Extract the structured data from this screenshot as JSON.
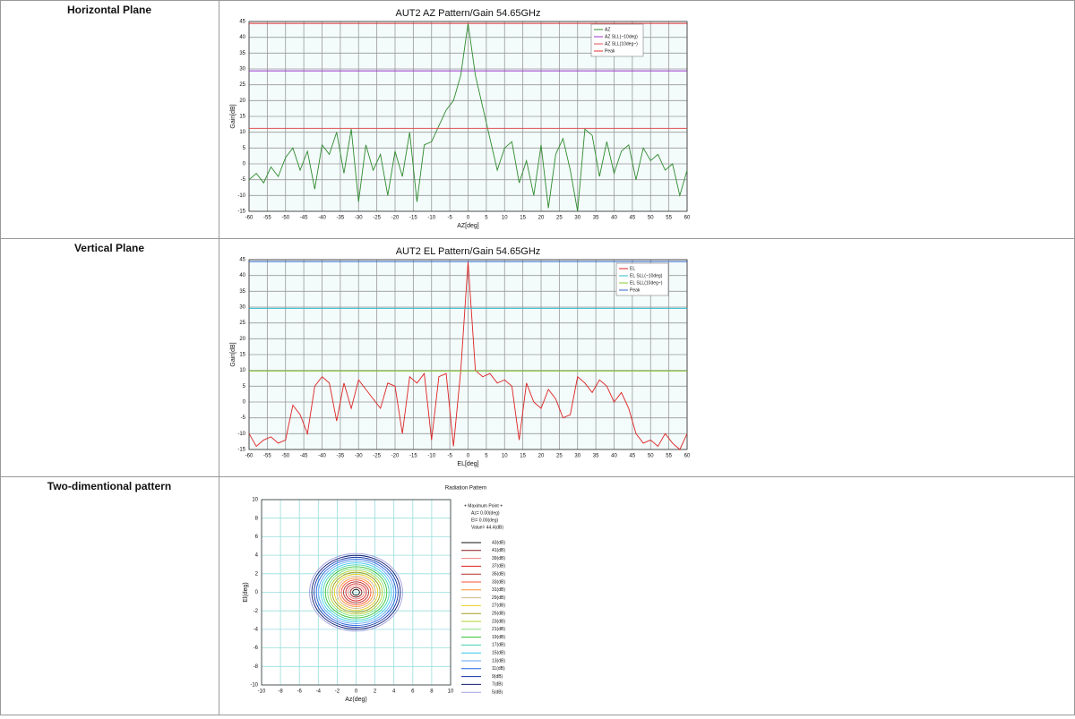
{
  "table": {
    "row_labels": [
      "Horizontal Plane",
      "Vertical Plane",
      "Two-dimentional pattern"
    ]
  },
  "chart_data": [
    {
      "type": "line",
      "title": "AUT2 AZ Pattern/Gain 54.65GHz",
      "xlabel": "AZ[deg]",
      "ylabel": "Gain[dB]",
      "xlim": [
        -60,
        60
      ],
      "ylim": [
        -15,
        45
      ],
      "xticks": [
        -60,
        -55,
        -50,
        -45,
        -40,
        -35,
        -30,
        -25,
        -20,
        -15,
        -10,
        -5,
        0,
        5,
        10,
        15,
        20,
        25,
        30,
        35,
        40,
        45,
        50,
        55,
        60
      ],
      "yticks": [
        -15,
        -10,
        -5,
        0,
        5,
        10,
        15,
        20,
        25,
        30,
        35,
        40,
        45
      ],
      "grid": true,
      "x": [
        -60,
        -58,
        -56,
        -54,
        -52,
        -50,
        -48,
        -46,
        -44,
        -42,
        -40,
        -38,
        -36,
        -34,
        -32,
        -30,
        -28,
        -26,
        -24,
        -22,
        -20,
        -18,
        -16,
        -14,
        -12,
        -10,
        -8,
        -6,
        -4,
        -2,
        0,
        2,
        4,
        6,
        8,
        10,
        12,
        14,
        16,
        18,
        20,
        22,
        24,
        26,
        28,
        30,
        32,
        34,
        36,
        38,
        40,
        42,
        44,
        46,
        48,
        50,
        52,
        54,
        56,
        58,
        60
      ],
      "series": [
        {
          "name": "AZ",
          "color": "#2e8b2e",
          "values": [
            -5,
            -3,
            -6,
            -1,
            -4,
            2,
            5,
            -2,
            4,
            -8,
            6,
            3,
            10,
            -3,
            11,
            -12,
            6,
            -2,
            3,
            -10,
            4,
            -4,
            10,
            -12,
            6,
            7,
            12,
            17,
            20,
            28,
            44.4,
            28,
            18,
            8,
            -2,
            5,
            7,
            -6,
            1,
            -10,
            6,
            -14,
            3,
            8,
            -2,
            -15,
            11,
            9,
            -4,
            7,
            -3,
            4,
            6,
            -5,
            5,
            1,
            3,
            -2,
            0,
            -10,
            -2
          ]
        },
        {
          "name": "AZ SLL(~10deg)",
          "color": "#9933cc",
          "x": [
            -60,
            60
          ],
          "values": [
            29.4,
            29.4
          ]
        },
        {
          "name": "AZ SLL(10deg~)",
          "color": "#e05050",
          "x": [
            -60,
            60
          ],
          "values": [
            11.2,
            11.2
          ]
        },
        {
          "name": "Peak",
          "color": "#e03030",
          "x": [
            -60,
            60
          ],
          "values": [
            44.4,
            44.4
          ]
        }
      ]
    },
    {
      "type": "line",
      "title": "AUT2 EL Pattern/Gain 54.65GHz",
      "xlabel": "EL[deg]",
      "ylabel": "Gain[dB]",
      "xlim": [
        -60,
        60
      ],
      "ylim": [
        -15,
        45
      ],
      "xticks": [
        -60,
        -55,
        -50,
        -45,
        -40,
        -35,
        -30,
        -25,
        -20,
        -15,
        -10,
        -5,
        0,
        5,
        10,
        15,
        20,
        25,
        30,
        35,
        40,
        45,
        50,
        55,
        60
      ],
      "yticks": [
        -15,
        -10,
        -5,
        0,
        5,
        10,
        15,
        20,
        25,
        30,
        35,
        40,
        45
      ],
      "grid": true,
      "x": [
        -60,
        -58,
        -56,
        -54,
        -52,
        -50,
        -48,
        -46,
        -44,
        -42,
        -40,
        -38,
        -36,
        -34,
        -32,
        -30,
        -28,
        -26,
        -24,
        -22,
        -20,
        -18,
        -16,
        -14,
        -12,
        -10,
        -8,
        -6,
        -4,
        -2,
        0,
        2,
        4,
        6,
        8,
        10,
        12,
        14,
        16,
        18,
        20,
        22,
        24,
        26,
        28,
        30,
        32,
        34,
        36,
        38,
        40,
        42,
        44,
        46,
        48,
        50,
        52,
        54,
        56,
        58,
        60
      ],
      "series": [
        {
          "name": "EL",
          "color": "#dd2222",
          "values": [
            -10,
            -14,
            -12,
            -11,
            -13,
            -12,
            -1,
            -4,
            -10,
            5,
            8,
            6,
            -6,
            6,
            -2,
            7,
            4,
            1,
            -2,
            6,
            5,
            -10,
            8,
            6,
            9,
            -12,
            8,
            9,
            -14,
            10,
            44.4,
            10,
            8,
            9,
            6,
            7,
            5,
            -12,
            6,
            0,
            -2,
            4,
            1,
            -5,
            -4,
            8,
            6,
            3,
            7,
            5,
            0,
            3,
            -2,
            -10,
            -13,
            -12,
            -14,
            -10,
            -13,
            -15,
            -10
          ]
        },
        {
          "name": "EL SLL(~10deg)",
          "color": "#33bbcc",
          "x": [
            -60,
            60
          ],
          "values": [
            29.6,
            29.6
          ]
        },
        {
          "name": "EL SLL(10deg~)",
          "color": "#88cc33",
          "x": [
            -60,
            60
          ],
          "values": [
            9.8,
            9.8
          ]
        },
        {
          "name": "Peak",
          "color": "#3366cc",
          "x": [
            -60,
            60
          ],
          "values": [
            44.4,
            44.4
          ]
        }
      ]
    },
    {
      "type": "contour",
      "title": "Radiation Pattern",
      "xlabel": "Az(deg)",
      "ylabel": "El(deg)",
      "xlim": [
        -10,
        10
      ],
      "ylim": [
        -10,
        10
      ],
      "xticks": [
        -10,
        -8,
        -6,
        -4,
        -2,
        0,
        2,
        4,
        6,
        8,
        10
      ],
      "yticks": [
        -10,
        -8,
        -6,
        -4,
        -2,
        0,
        2,
        4,
        6,
        8,
        10
      ],
      "annotations": [
        "+ Maximum Point +",
        "Az= 0.00(deg)",
        "El= 0.00(deg)",
        "Value= 44.4(dB)"
      ],
      "peak_value": 44.4,
      "levels": [
        {
          "name": "43(dB)",
          "level": 43,
          "color": "#111111"
        },
        {
          "name": "41(dB)",
          "level": 41,
          "color": "#8b1a1a"
        },
        {
          "name": "39(dB)",
          "level": 39,
          "color": "#f08080"
        },
        {
          "name": "37(dB)",
          "level": 37,
          "color": "#e02020"
        },
        {
          "name": "35(dB)",
          "level": 35,
          "color": "#b03030"
        },
        {
          "name": "33(dB)",
          "level": 33,
          "color": "#ff5030"
        },
        {
          "name": "31(dB)",
          "level": 31,
          "color": "#ff9030"
        },
        {
          "name": "29(dB)",
          "level": 29,
          "color": "#d2b48c"
        },
        {
          "name": "27(dB)",
          "level": 27,
          "color": "#e8d020"
        },
        {
          "name": "25(dB)",
          "level": 25,
          "color": "#a0a020"
        },
        {
          "name": "23(dB)",
          "level": 23,
          "color": "#b0d030"
        },
        {
          "name": "21(dB)",
          "level": 21,
          "color": "#80e080"
        },
        {
          "name": "19(dB)",
          "level": 19,
          "color": "#30c030"
        },
        {
          "name": "17(dB)",
          "level": 17,
          "color": "#40d0b0"
        },
        {
          "name": "15(dB)",
          "level": 15,
          "color": "#30c8e8"
        },
        {
          "name": "13(dB)",
          "level": 13,
          "color": "#60a0f0"
        },
        {
          "name": "11(dB)",
          "level": 11,
          "color": "#2060e0"
        },
        {
          "name": "9(dB)",
          "level": 9,
          "color": "#1030a0"
        },
        {
          "name": "7(dB)",
          "level": 7,
          "color": "#101870"
        },
        {
          "name": "5(dB)",
          "level": 5,
          "color": "#a0a0e0"
        }
      ]
    }
  ]
}
